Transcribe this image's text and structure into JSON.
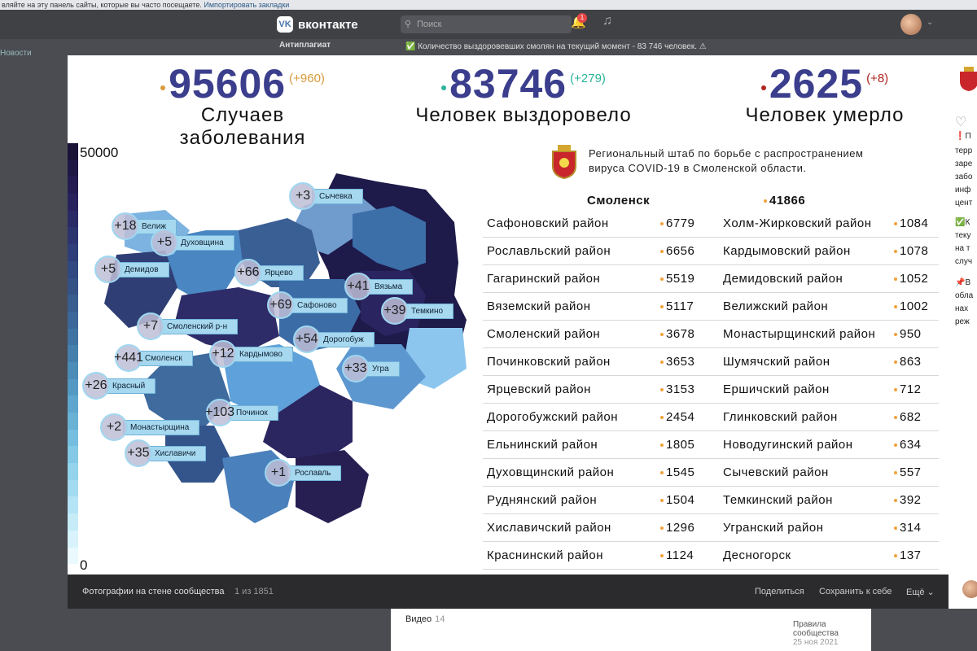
{
  "browser": {
    "bookmark_hint": "вляйте на эту панель сайты, которые вы часто посещаете.",
    "bookmark_link": "Импортировать закладки"
  },
  "vk": {
    "logo": "вконтакте",
    "logo_badge": "VK",
    "search_placeholder": "Поиск",
    "notifications_count": "1",
    "left_nav": "Новости",
    "sidebar_title": "Антиплагиат",
    "notice": "✅ Количество выздоровевших смолян на текущий момент - 83 746 человек. ⚠"
  },
  "stats": {
    "cases": {
      "value": "95606",
      "delta": "(+960)",
      "label": "Случаев заболевания",
      "color": "#d99a3a"
    },
    "recovered": {
      "value": "83746",
      "delta": "(+279)",
      "label": "Человек выздоровело",
      "color": "#2bb39a"
    },
    "deaths": {
      "value": "2625",
      "delta": "(+8)",
      "label": "Человек умерло",
      "color": "#b0241f"
    }
  },
  "scale": {
    "max": "50000",
    "min": "0"
  },
  "headquarters": {
    "line1": "Региональный штаб по борьбе с распространением",
    "line2": "вируса COVID-19 в Смоленской области."
  },
  "city": {
    "name": "Смоленск",
    "value": "41866"
  },
  "districts_left": [
    {
      "name": "Сафоновский район",
      "value": "6779"
    },
    {
      "name": "Рославльский район",
      "value": "6656"
    },
    {
      "name": "Гагаринский район",
      "value": "5519"
    },
    {
      "name": "Вяземский район",
      "value": "5117"
    },
    {
      "name": "Смоленский район",
      "value": "3678"
    },
    {
      "name": "Починковский район",
      "value": "3653"
    },
    {
      "name": "Ярцевский район",
      "value": "3153"
    },
    {
      "name": "Дорогобужский район",
      "value": "2454"
    },
    {
      "name": "Ельнинский район",
      "value": "1805"
    },
    {
      "name": "Духовщинский район",
      "value": "1545"
    },
    {
      "name": "Руднянский район",
      "value": "1504"
    },
    {
      "name": "Хиславичский район",
      "value": "1296"
    },
    {
      "name": "Краснинский район",
      "value": "1124"
    }
  ],
  "districts_right": [
    {
      "name": "Холм-Жирковский район",
      "value": "1084"
    },
    {
      "name": "Кардымовский район",
      "value": "1078"
    },
    {
      "name": "Демидовский район",
      "value": "1052"
    },
    {
      "name": "Велижский район",
      "value": "1002"
    },
    {
      "name": "Монастырщинский район",
      "value": "950"
    },
    {
      "name": "Шумячский район",
      "value": "863"
    },
    {
      "name": "Ершичский район",
      "value": "712"
    },
    {
      "name": "Глинковский район",
      "value": "682"
    },
    {
      "name": "Новодугинский район",
      "value": "634"
    },
    {
      "name": "Сычевский район",
      "value": "557"
    },
    {
      "name": "Темкинский район",
      "value": "392"
    },
    {
      "name": "Угранский район",
      "value": "314"
    },
    {
      "name": "Десногорск",
      "value": "137"
    }
  ],
  "map_labels": [
    {
      "name": "Сычевка",
      "delta": "+3"
    },
    {
      "name": "Велиж",
      "delta": "+18"
    },
    {
      "name": "Духовщина",
      "delta": "+5"
    },
    {
      "name": "Демидов",
      "delta": "+5"
    },
    {
      "name": "Ярцево",
      "delta": "+66"
    },
    {
      "name": "Сафоново",
      "delta": "+69"
    },
    {
      "name": "Вязьма",
      "delta": "+41"
    },
    {
      "name": "Темкино",
      "delta": "+39"
    },
    {
      "name": "Смоленский р-н",
      "delta": "+7"
    },
    {
      "name": "Дорогобуж",
      "delta": "+54"
    },
    {
      "name": "Смоленск",
      "delta": "+441"
    },
    {
      "name": "Кардымово",
      "delta": "+12"
    },
    {
      "name": "Угра",
      "delta": "+33"
    },
    {
      "name": "Красный",
      "delta": "+26"
    },
    {
      "name": "Починок",
      "delta": "+103"
    },
    {
      "name": "Монастырщина",
      "delta": "+2"
    },
    {
      "name": "Хиславичи",
      "delta": "+35"
    },
    {
      "name": "Рославль",
      "delta": "+1"
    }
  ],
  "footer": {
    "title": "Фотографии на стене сообщества",
    "counter": "1 из 1851",
    "share": "Поделиться",
    "save": "Сохранить к себе",
    "more": "Ещё ⌄"
  },
  "right_panel": {
    "lines": [
      "❗П",
      "терр",
      "заре",
      "забо",
      "инф",
      "цент",
      "✅К",
      "теку",
      "на т",
      "случ",
      "📌В",
      "обла",
      "нах",
      "реж"
    ]
  },
  "bottom": {
    "videos": "Видео",
    "videos_count": "14",
    "rules": "Правила сообщества",
    "rules_date": "25 ноя 2021"
  }
}
